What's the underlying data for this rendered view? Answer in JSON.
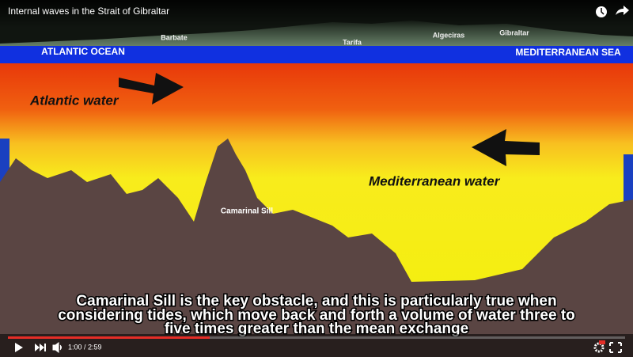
{
  "video": {
    "title": "Internal waves in the Strait of Gibraltar",
    "time": "1:00 / 2:59"
  },
  "scene": {
    "places": [
      "Barbate",
      "Tarifa",
      "Algeciras",
      "Gibraltar"
    ],
    "atlantic_ocean": "ATLANTIC OCEAN",
    "mediterranean_sea": "MEDITERRANEAN SEA",
    "atlantic_water": "Atlantic water",
    "mediterranean_water": "Mediterranean water",
    "sill": "Camarinal Sill"
  },
  "subtitles": [
    "Camarinal Sill is the key obstacle, and this is particularly true when",
    "considering tides, which move back and forth a volume of water three to",
    "five times greater than the mean exchange"
  ]
}
